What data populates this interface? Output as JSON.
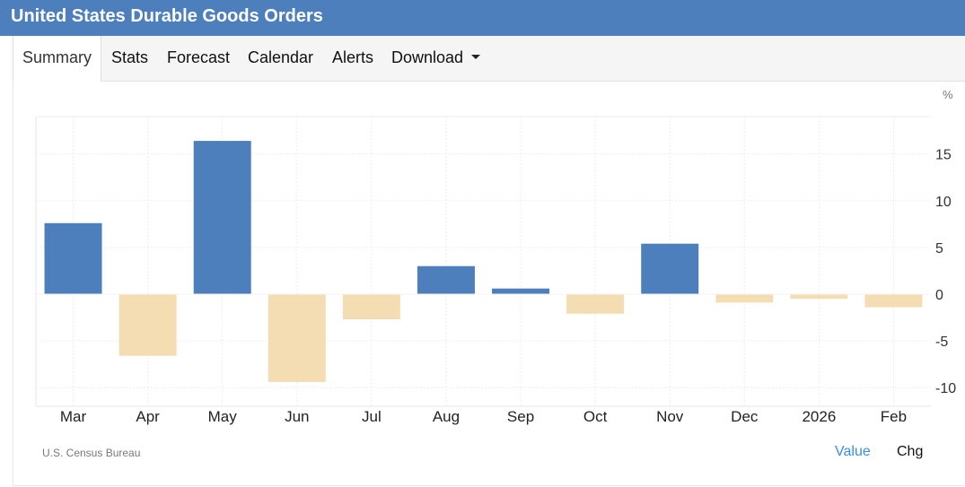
{
  "header": {
    "title": "United States Durable Goods Orders"
  },
  "tabs": [
    {
      "label": "Summary",
      "active": true
    },
    {
      "label": "Stats"
    },
    {
      "label": "Forecast"
    },
    {
      "label": "Calendar"
    },
    {
      "label": "Alerts"
    },
    {
      "label": "Download",
      "has_dropdown": true
    }
  ],
  "footer": {
    "source": "U.S. Census Bureau",
    "options": [
      {
        "label": "Value",
        "selected": true
      },
      {
        "label": "Chg"
      }
    ]
  },
  "colors": {
    "header": "#4d7fbd",
    "positive": "#4d7fbd",
    "negative": "#f5ddb3",
    "link": "#3b8ede"
  },
  "chart_data": {
    "type": "bar",
    "unit": "%",
    "categories": [
      "Mar",
      "Apr",
      "May",
      "Jun",
      "Jul",
      "Aug",
      "Sep",
      "Oct",
      "Nov",
      "Dec",
      "2026",
      "Feb"
    ],
    "values": [
      7.6,
      -6.6,
      16.4,
      -9.4,
      -2.7,
      3.0,
      0.6,
      -2.1,
      5.4,
      -0.9,
      -0.5,
      -1.4
    ],
    "y_ticks": [
      15,
      10,
      5,
      0,
      -5,
      -10
    ],
    "ylim": [
      -12,
      19
    ],
    "y_axis_position": "right",
    "grid": true
  }
}
